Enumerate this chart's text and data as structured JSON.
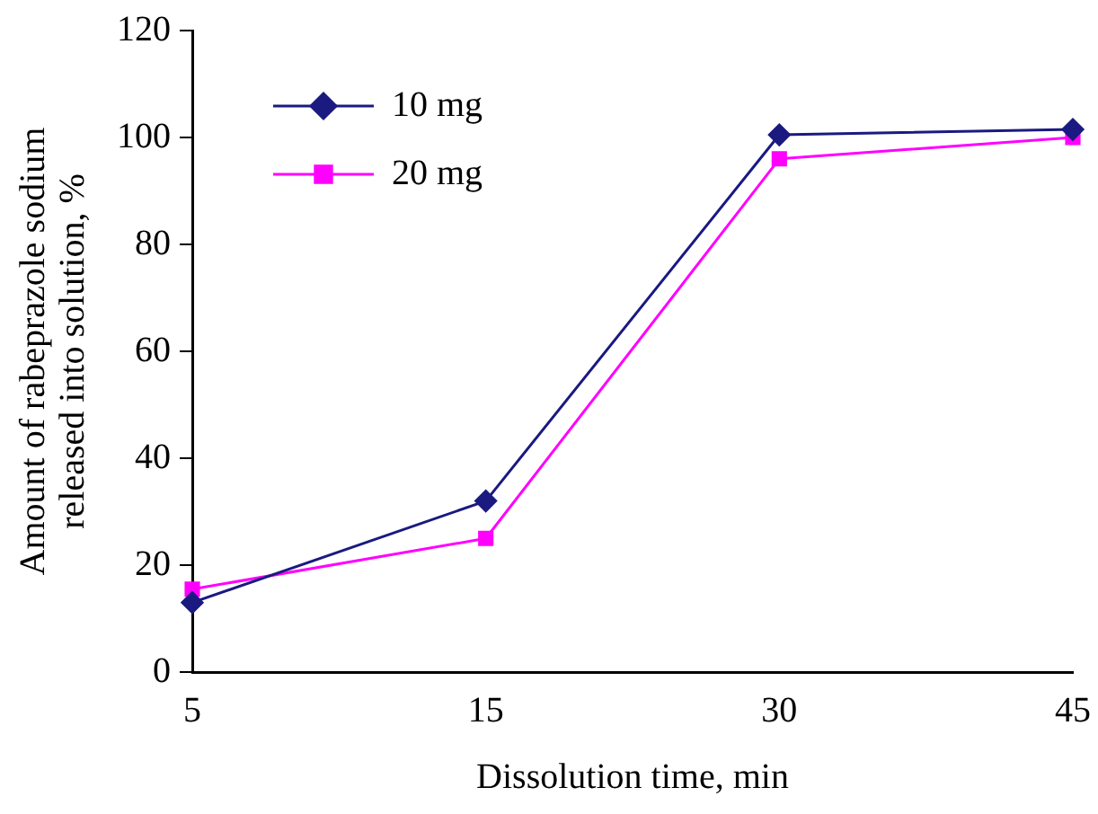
{
  "chart_data": {
    "type": "line",
    "xlabel": "Dissolution time, min",
    "ylabel": "Amount of rabeprazole sodium released into solution, %",
    "categories": [
      "5",
      "15",
      "30",
      "45"
    ],
    "series": [
      {
        "name": "10 mg",
        "color": "#1a1a80",
        "marker": "diamond",
        "values": [
          13,
          32,
          100.5,
          101.5
        ]
      },
      {
        "name": "20 mg",
        "color": "#ff00ff",
        "marker": "square",
        "values": [
          15.5,
          25,
          96,
          100
        ]
      }
    ],
    "ylim": [
      0,
      120
    ],
    "yticks": [
      0,
      20,
      40,
      60,
      80,
      100,
      120
    ],
    "grid": false,
    "legend": "top left",
    "line_style": "solid"
  }
}
